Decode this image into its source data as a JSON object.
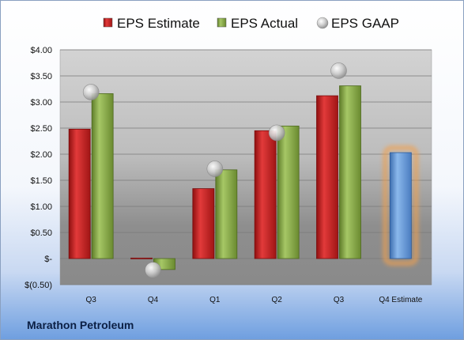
{
  "company_label": "Marathon Petroleum",
  "chart_data": {
    "type": "bar",
    "categories": [
      "Q3",
      "Q4",
      "Q1",
      "Q2",
      "Q3",
      "Q4 Estimate"
    ],
    "series": [
      {
        "name": "EPS Estimate",
        "color": "#d42a2a",
        "values": [
          2.48,
          0.01,
          1.34,
          2.45,
          3.12,
          null
        ]
      },
      {
        "name": "EPS Actual",
        "color": "#8db04a",
        "values": [
          3.16,
          -0.21,
          1.7,
          2.54,
          3.31,
          null
        ]
      },
      {
        "name": "EPS GAAP",
        "color": "#c8c8c8",
        "marker": "sphere",
        "values": [
          3.19,
          -0.22,
          1.72,
          2.41,
          3.6,
          null
        ]
      },
      {
        "name": "",
        "color": "#5b9bd5",
        "highlight": "#f0a050",
        "values": [
          null,
          null,
          null,
          null,
          null,
          2.03
        ]
      }
    ],
    "ylim": [
      -0.5,
      4.0
    ],
    "yticks": [
      -0.5,
      0,
      0.5,
      1.0,
      1.5,
      2.0,
      2.5,
      3.0,
      3.5,
      4.0
    ],
    "ytick_labels": [
      "$(0.50)",
      "$-",
      "$0.50",
      "$1.00",
      "$1.50",
      "$2.00",
      "$2.50",
      "$3.00",
      "$3.50",
      "$4.00"
    ],
    "grid": true,
    "legend_position": "top"
  }
}
